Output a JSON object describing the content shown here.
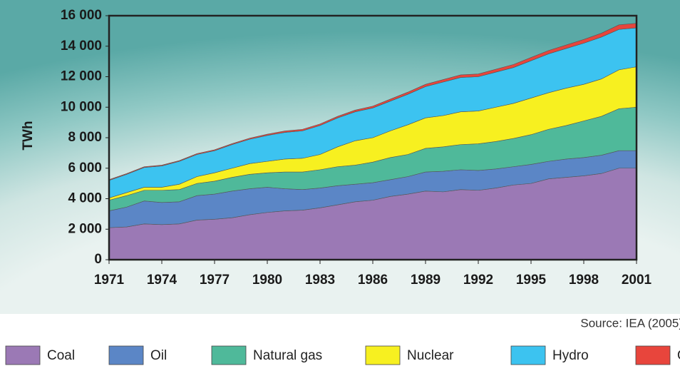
{
  "chart_data": {
    "type": "stacked-area",
    "y_label": "TWh",
    "source": "Source: IEA (2005)",
    "x": [
      1971,
      1972,
      1973,
      1974,
      1975,
      1976,
      1977,
      1978,
      1979,
      1980,
      1981,
      1982,
      1983,
      1984,
      1985,
      1986,
      1987,
      1988,
      1989,
      1990,
      1991,
      1992,
      1993,
      1994,
      1995,
      1996,
      1997,
      1998,
      1999,
      2000,
      2001
    ],
    "xlim": [
      1971,
      2001
    ],
    "xticks": [
      1971,
      1974,
      1977,
      1980,
      1983,
      1986,
      1989,
      1992,
      1995,
      1998,
      2001
    ],
    "ylim": [
      0,
      16000
    ],
    "yticks": [
      0,
      {
        "value": 2000,
        "label": "2 000"
      },
      {
        "value": 4000,
        "label": "4 000"
      },
      {
        "value": 6000,
        "label": "6 000"
      },
      {
        "value": 8000,
        "label": "8 000"
      },
      {
        "value": 10000,
        "label": "10 000"
      },
      {
        "value": 12000,
        "label": "12 000"
      },
      {
        "value": 14000,
        "label": "14 000"
      },
      {
        "value": 16000,
        "label": "16 000"
      }
    ],
    "series": [
      {
        "name": "Coal",
        "color": "#9b79b5",
        "values": [
          2100,
          2150,
          2350,
          2300,
          2350,
          2600,
          2650,
          2750,
          2950,
          3100,
          3200,
          3250,
          3400,
          3600,
          3800,
          3900,
          4150,
          4300,
          4500,
          4450,
          4600,
          4550,
          4700,
          4900,
          5000,
          5300,
          5400,
          5500,
          5650,
          6000,
          6000
        ]
      },
      {
        "name": "Oil",
        "color": "#5b86c6",
        "values": [
          1100,
          1300,
          1500,
          1450,
          1450,
          1600,
          1650,
          1750,
          1700,
          1650,
          1450,
          1350,
          1300,
          1250,
          1150,
          1150,
          1100,
          1150,
          1250,
          1350,
          1300,
          1300,
          1250,
          1200,
          1250,
          1150,
          1200,
          1200,
          1200,
          1150,
          1150
        ]
      },
      {
        "name": "Natural gas",
        "color": "#4fb99a",
        "values": [
          700,
          750,
          700,
          800,
          800,
          800,
          850,
          900,
          950,
          950,
          1100,
          1150,
          1200,
          1250,
          1250,
          1350,
          1450,
          1450,
          1550,
          1600,
          1650,
          1750,
          1800,
          1850,
          1950,
          2100,
          2200,
          2400,
          2550,
          2750,
          2850
        ]
      },
      {
        "name": "Nuclear",
        "color": "#f7f020",
        "values": [
          150,
          200,
          200,
          200,
          350,
          450,
          550,
          600,
          700,
          750,
          850,
          900,
          1000,
          1300,
          1600,
          1600,
          1750,
          1950,
          2000,
          2050,
          2150,
          2150,
          2250,
          2300,
          2400,
          2400,
          2450,
          2400,
          2450,
          2550,
          2650
        ]
      },
      {
        "name": "Hydro",
        "color": "#3cc3f0",
        "values": [
          1150,
          1200,
          1300,
          1400,
          1500,
          1450,
          1450,
          1550,
          1600,
          1700,
          1750,
          1800,
          1900,
          1900,
          1900,
          1950,
          1950,
          2000,
          2050,
          2200,
          2250,
          2250,
          2300,
          2350,
          2450,
          2550,
          2600,
          2700,
          2750,
          2650,
          2550
        ]
      },
      {
        "name": "Other",
        "color": "#e8453c",
        "values": [
          50,
          50,
          50,
          50,
          50,
          60,
          60,
          60,
          70,
          80,
          90,
          100,
          100,
          100,
          110,
          120,
          130,
          140,
          150,
          160,
          170,
          180,
          190,
          200,
          210,
          220,
          230,
          240,
          250,
          300,
          300
        ]
      }
    ]
  }
}
